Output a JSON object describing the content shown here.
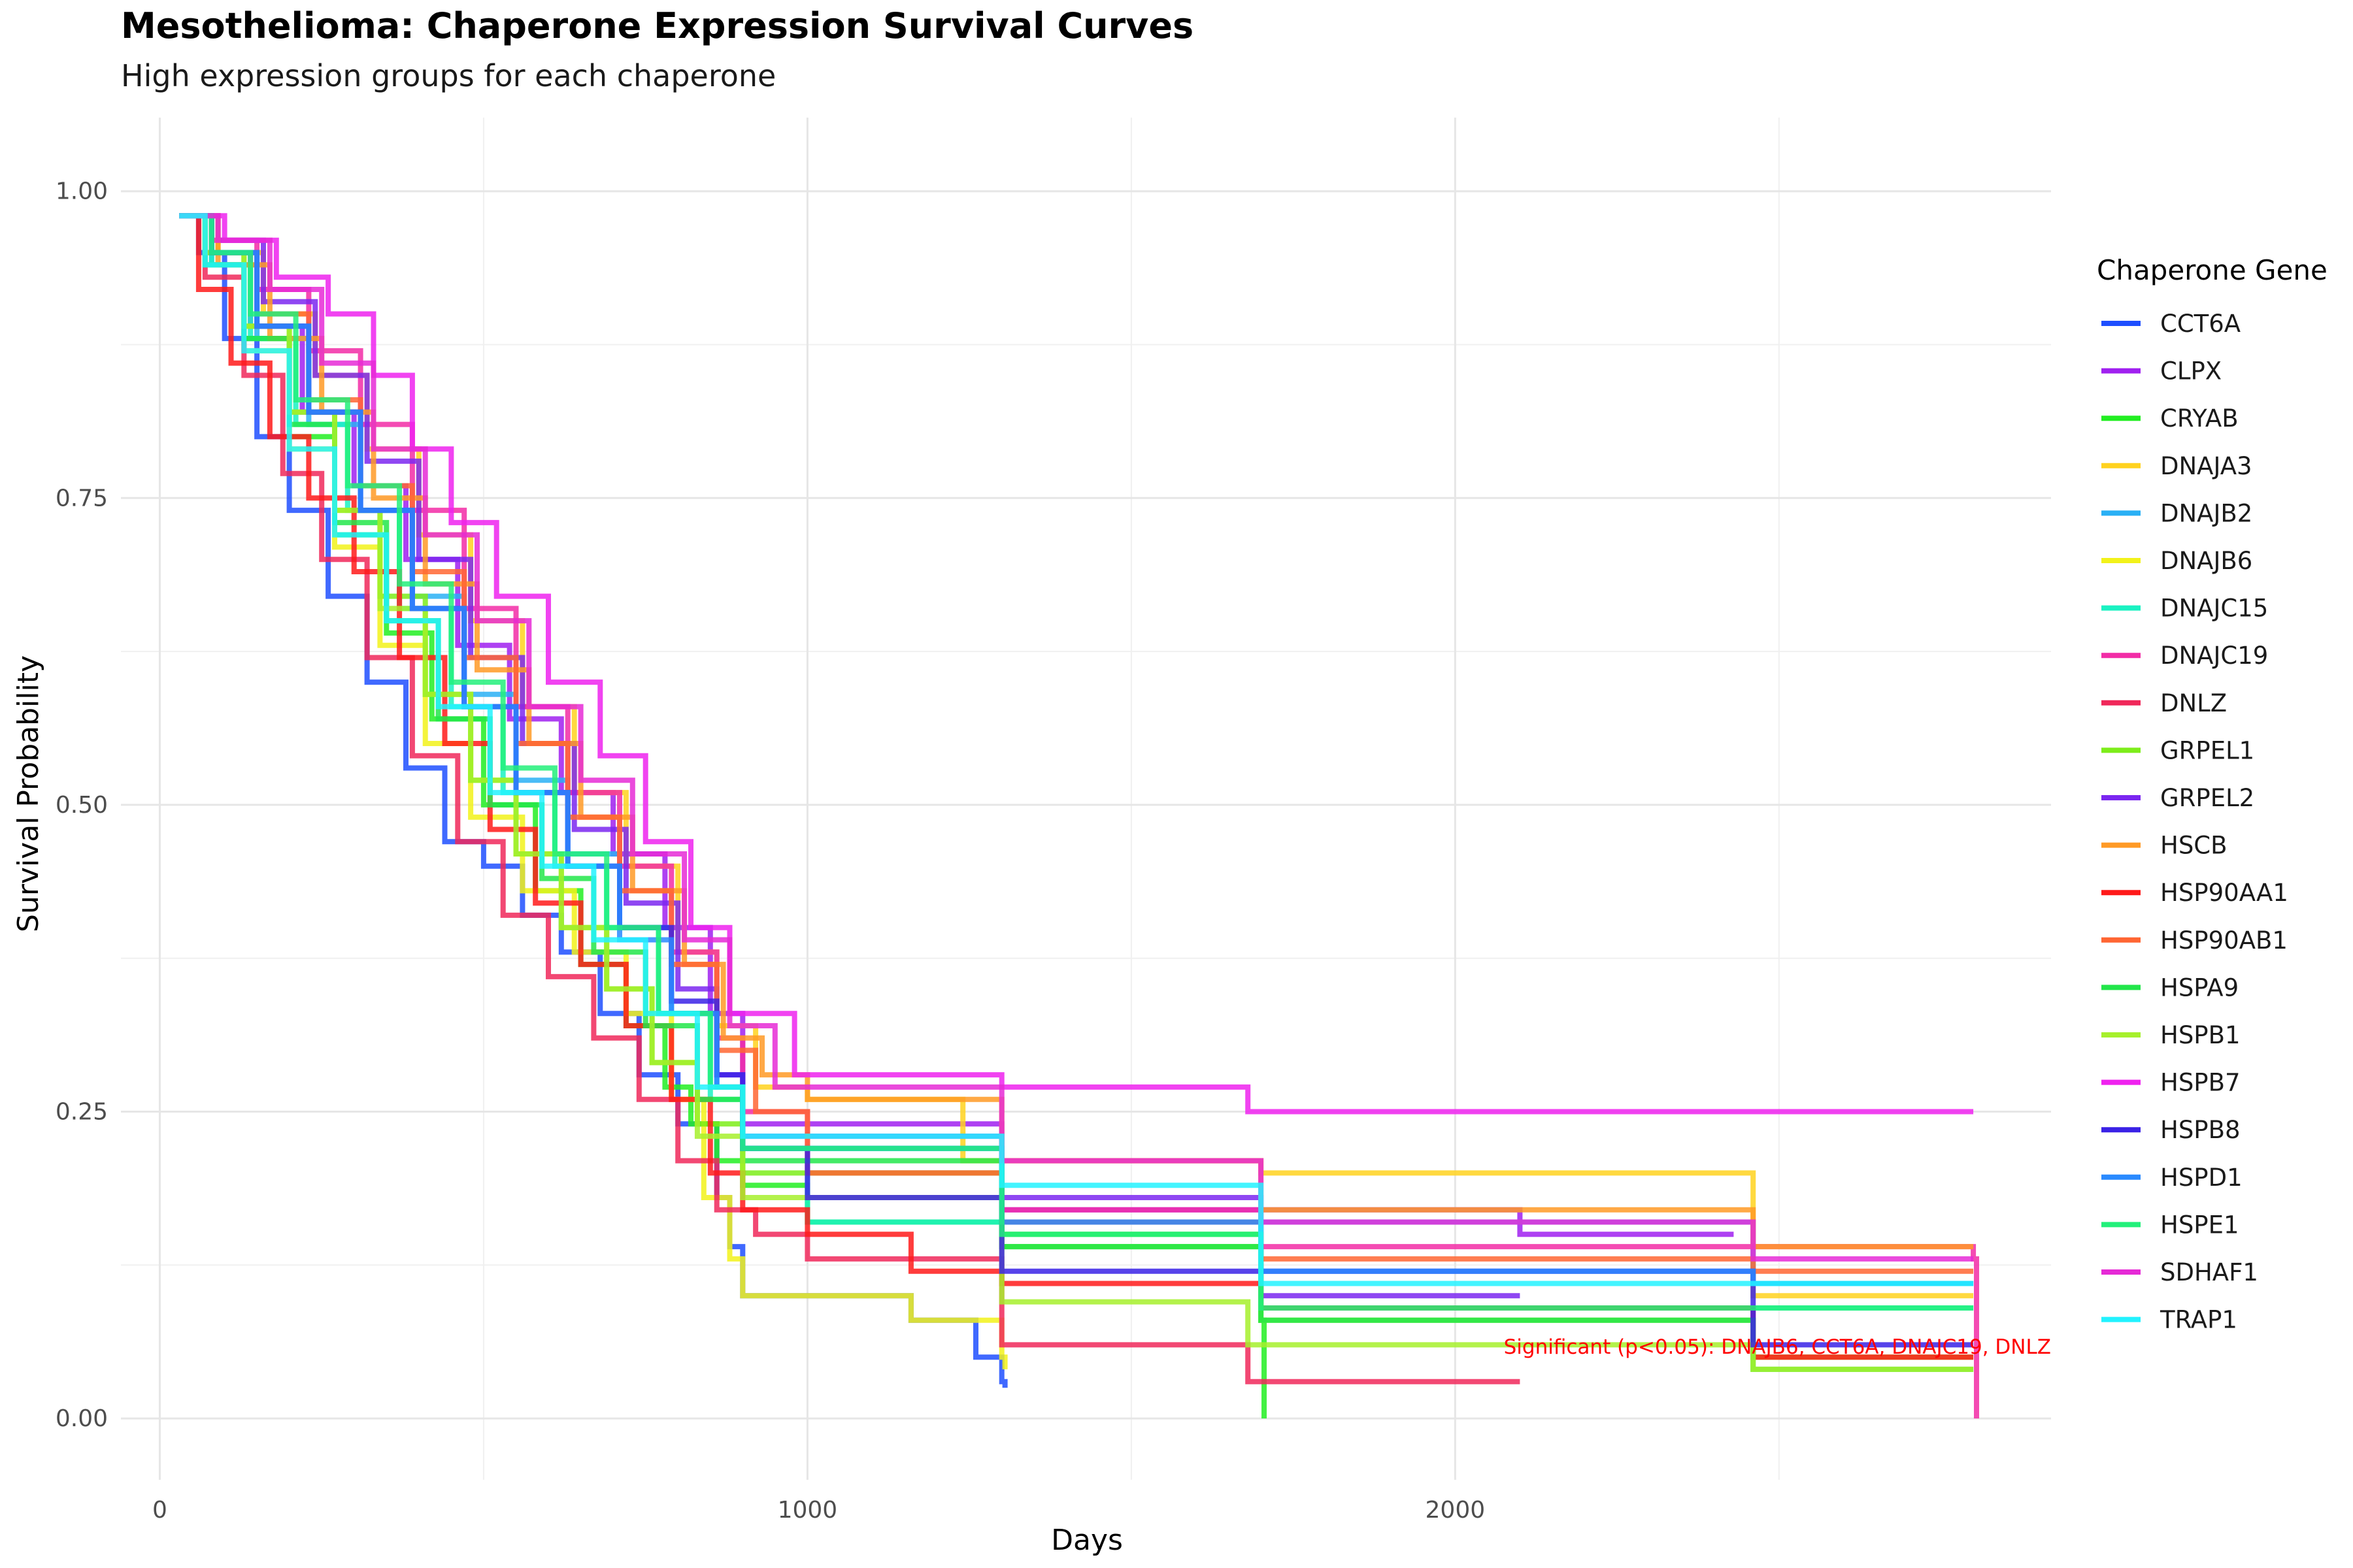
{
  "chart_data": {
    "type": "line",
    "step": true,
    "title": "Mesothelioma: Chaperone Expression Survival Curves",
    "subtitle": "High expression groups for each chaperone",
    "xlabel": "Days",
    "ylabel": "Survival Probability",
    "xlim": [
      -60,
      2920
    ],
    "ylim": [
      -0.05,
      1.06
    ],
    "x_ticks": [
      0,
      1000,
      2000
    ],
    "x_tick_labels": [
      "0",
      "1000",
      "2000"
    ],
    "y_ticks": [
      0,
      0.25,
      0.5,
      0.75,
      1.0
    ],
    "y_tick_labels": [
      "0.00",
      "0.25",
      "0.50",
      "0.75",
      "1.00"
    ],
    "grid": true,
    "legend": {
      "title": "Chaperone Gene",
      "position": "right"
    },
    "annotation": {
      "text": "Significant (p<0.05): DNAJB6, CCT6A, DNAJC19, DNLZ",
      "color": "#ff0000"
    },
    "series": [
      {
        "name": "CCT6A",
        "color": "#1e4fff",
        "x": [
          30,
          60,
          100,
          150,
          200,
          260,
          320,
          380,
          440,
          500,
          560,
          620,
          680,
          740,
          800,
          860,
          880,
          900,
          1160,
          1260,
          1300,
          1305
        ],
        "y": [
          0.98,
          0.95,
          0.88,
          0.8,
          0.74,
          0.67,
          0.6,
          0.53,
          0.47,
          0.45,
          0.41,
          0.38,
          0.33,
          0.28,
          0.24,
          0.18,
          0.14,
          0.1,
          0.08,
          0.05,
          0.03,
          0.025
        ]
      },
      {
        "name": "CLPX",
        "color": "#a020f0",
        "x": [
          30,
          80,
          140,
          220,
          300,
          380,
          460,
          540,
          620,
          700,
          780,
          850,
          900,
          1300,
          2100,
          2300,
          2430
        ],
        "y": [
          0.98,
          0.95,
          0.89,
          0.82,
          0.76,
          0.7,
          0.63,
          0.57,
          0.51,
          0.46,
          0.4,
          0.33,
          0.24,
          0.17,
          0.15,
          0.15,
          0.15
        ]
      },
      {
        "name": "CRYAB",
        "color": "#22ee22",
        "x": [
          30,
          70,
          130,
          200,
          270,
          350,
          420,
          500,
          580,
          650,
          720,
          780,
          820,
          860,
          900,
          1000,
          1300,
          1700,
          1705
        ],
        "y": [
          0.98,
          0.94,
          0.88,
          0.8,
          0.72,
          0.64,
          0.57,
          0.5,
          0.43,
          0.37,
          0.32,
          0.27,
          0.24,
          0.21,
          0.19,
          0.16,
          0.15,
          0.08,
          0.0
        ]
      },
      {
        "name": "DNAJA3",
        "color": "#ffd21f",
        "x": [
          30,
          90,
          160,
          240,
          320,
          400,
          480,
          560,
          640,
          720,
          800,
          860,
          920,
          1000,
          1240,
          1700,
          2460,
          2800
        ],
        "y": [
          0.98,
          0.95,
          0.9,
          0.85,
          0.79,
          0.72,
          0.65,
          0.58,
          0.51,
          0.45,
          0.38,
          0.32,
          0.27,
          0.26,
          0.21,
          0.2,
          0.1,
          0.1
        ]
      },
      {
        "name": "DNAJB2",
        "color": "#2ab0f5",
        "x": [
          30,
          80,
          150,
          230,
          310,
          390,
          470,
          550,
          630,
          710,
          790,
          860,
          900,
          1300,
          2460,
          2800
        ],
        "y": [
          0.98,
          0.94,
          0.88,
          0.81,
          0.74,
          0.67,
          0.59,
          0.52,
          0.46,
          0.4,
          0.33,
          0.27,
          0.22,
          0.16,
          0.11,
          0.11
        ]
      },
      {
        "name": "DNAJB6",
        "color": "#f2f21a",
        "x": [
          30,
          70,
          130,
          200,
          270,
          340,
          410,
          480,
          560,
          640,
          720,
          790,
          840,
          880,
          900,
          1160,
          1300,
          1305
        ],
        "y": [
          0.98,
          0.94,
          0.87,
          0.79,
          0.71,
          0.63,
          0.55,
          0.49,
          0.43,
          0.38,
          0.33,
          0.26,
          0.18,
          0.13,
          0.1,
          0.08,
          0.05,
          0.04
        ]
      },
      {
        "name": "DNAJC15",
        "color": "#1af2c2",
        "x": [
          30,
          80,
          140,
          210,
          290,
          370,
          450,
          530,
          610,
          690,
          770,
          850,
          900,
          1000,
          1300,
          1700,
          2460,
          2800
        ],
        "y": [
          0.98,
          0.94,
          0.88,
          0.81,
          0.74,
          0.66,
          0.58,
          0.51,
          0.45,
          0.4,
          0.33,
          0.26,
          0.22,
          0.16,
          0.14,
          0.09,
          0.09,
          0.09
        ]
      },
      {
        "name": "DNAJC19",
        "color": "#f22ca6",
        "x": [
          30,
          80,
          150,
          230,
          310,
          390,
          470,
          550,
          630,
          710,
          790,
          860,
          900,
          1000,
          1300,
          1700,
          2460,
          2800,
          2805
        ],
        "y": [
          0.98,
          0.96,
          0.92,
          0.87,
          0.81,
          0.74,
          0.66,
          0.58,
          0.51,
          0.45,
          0.38,
          0.31,
          0.25,
          0.2,
          0.17,
          0.14,
          0.14,
          0.13,
          0.0
        ]
      },
      {
        "name": "DNLZ",
        "color": "#f0285a",
        "x": [
          30,
          70,
          130,
          190,
          250,
          320,
          390,
          460,
          530,
          600,
          670,
          740,
          800,
          860,
          920,
          1000,
          1300,
          1680,
          2100
        ],
        "y": [
          0.98,
          0.93,
          0.85,
          0.77,
          0.7,
          0.62,
          0.54,
          0.47,
          0.41,
          0.36,
          0.31,
          0.26,
          0.21,
          0.17,
          0.15,
          0.13,
          0.06,
          0.03,
          0.03
        ]
      },
      {
        "name": "GRPEL1",
        "color": "#7ded1a",
        "x": [
          30,
          70,
          130,
          200,
          270,
          340,
          410,
          480,
          550,
          620,
          690,
          760,
          830,
          900,
          1300,
          1700,
          2460,
          2800
        ],
        "y": [
          0.98,
          0.95,
          0.89,
          0.82,
          0.74,
          0.67,
          0.59,
          0.52,
          0.46,
          0.4,
          0.35,
          0.29,
          0.24,
          0.2,
          0.14,
          0.08,
          0.05,
          0.05
        ]
      },
      {
        "name": "GRPEL2",
        "color": "#7b27f0",
        "x": [
          30,
          90,
          160,
          240,
          320,
          400,
          480,
          560,
          640,
          720,
          800,
          860,
          900,
          1300,
          1700,
          2100
        ],
        "y": [
          0.98,
          0.96,
          0.91,
          0.85,
          0.78,
          0.7,
          0.62,
          0.55,
          0.48,
          0.42,
          0.35,
          0.28,
          0.23,
          0.18,
          0.1,
          0.1
        ]
      },
      {
        "name": "HSCB",
        "color": "#ff9a26",
        "x": [
          30,
          90,
          170,
          250,
          330,
          410,
          490,
          570,
          650,
          730,
          810,
          870,
          930,
          1000,
          1300,
          1700,
          2460,
          2800
        ],
        "y": [
          0.98,
          0.94,
          0.88,
          0.82,
          0.75,
          0.68,
          0.61,
          0.55,
          0.49,
          0.43,
          0.37,
          0.31,
          0.28,
          0.26,
          0.21,
          0.17,
          0.14,
          0.14
        ]
      },
      {
        "name": "HSP90AA1",
        "color": "#ff1a1a",
        "x": [
          30,
          60,
          110,
          170,
          230,
          300,
          370,
          440,
          510,
          580,
          650,
          720,
          790,
          850,
          900,
          1000,
          1160,
          1300,
          1700,
          2460,
          2800
        ],
        "y": [
          0.98,
          0.92,
          0.86,
          0.8,
          0.75,
          0.69,
          0.62,
          0.55,
          0.48,
          0.42,
          0.37,
          0.32,
          0.26,
          0.2,
          0.17,
          0.15,
          0.12,
          0.11,
          0.09,
          0.05,
          0.05
        ]
      },
      {
        "name": "HSP90AB1",
        "color": "#ff6633",
        "x": [
          30,
          80,
          150,
          230,
          310,
          390,
          470,
          550,
          630,
          710,
          790,
          860,
          920,
          1000,
          1300,
          1700,
          2460,
          2800
        ],
        "y": [
          0.98,
          0.95,
          0.9,
          0.83,
          0.76,
          0.69,
          0.62,
          0.55,
          0.49,
          0.43,
          0.37,
          0.3,
          0.25,
          0.2,
          0.16,
          0.13,
          0.12,
          0.12
        ]
      },
      {
        "name": "HSPA9",
        "color": "#22e64a",
        "x": [
          30,
          70,
          130,
          200,
          270,
          350,
          430,
          510,
          590,
          670,
          750,
          830,
          900,
          1300,
          1700,
          2460,
          2800
        ],
        "y": [
          0.98,
          0.94,
          0.88,
          0.81,
          0.73,
          0.65,
          0.57,
          0.5,
          0.44,
          0.38,
          0.32,
          0.26,
          0.21,
          0.14,
          0.08,
          0.04,
          0.04
        ]
      },
      {
        "name": "HSPB1",
        "color": "#a6f02c",
        "x": [
          30,
          70,
          130,
          200,
          270,
          340,
          410,
          480,
          550,
          620,
          690,
          760,
          830,
          900,
          1300,
          1680,
          2460,
          2800
        ],
        "y": [
          0.98,
          0.95,
          0.89,
          0.82,
          0.74,
          0.66,
          0.59,
          0.52,
          0.46,
          0.4,
          0.35,
          0.29,
          0.23,
          0.18,
          0.095,
          0.06,
          0.04,
          0.04
        ]
      },
      {
        "name": "HSPB7",
        "color": "#ef22ef",
        "x": [
          30,
          100,
          180,
          260,
          330,
          390,
          450,
          520,
          600,
          680,
          750,
          820,
          880,
          980,
          1300,
          1680,
          2460,
          2800
        ],
        "y": [
          0.98,
          0.96,
          0.93,
          0.9,
          0.85,
          0.79,
          0.73,
          0.67,
          0.6,
          0.54,
          0.47,
          0.4,
          0.33,
          0.28,
          0.27,
          0.25,
          0.25,
          0.25
        ]
      },
      {
        "name": "HSPB8",
        "color": "#3a22e6",
        "x": [
          30,
          80,
          150,
          230,
          310,
          390,
          470,
          550,
          630,
          710,
          790,
          860,
          900,
          1000,
          1300,
          2460,
          2800
        ],
        "y": [
          0.98,
          0.95,
          0.89,
          0.82,
          0.74,
          0.66,
          0.58,
          0.51,
          0.45,
          0.4,
          0.34,
          0.28,
          0.22,
          0.18,
          0.12,
          0.06,
          0.06
        ]
      },
      {
        "name": "HSPD1",
        "color": "#2a8aff",
        "x": [
          30,
          80,
          150,
          230,
          310,
          390,
          470,
          550,
          630,
          710,
          790,
          860,
          900,
          1300,
          1700,
          2460,
          2800
        ],
        "y": [
          0.98,
          0.95,
          0.89,
          0.82,
          0.74,
          0.66,
          0.58,
          0.51,
          0.45,
          0.39,
          0.33,
          0.27,
          0.22,
          0.16,
          0.12,
          0.11,
          0.11
        ]
      },
      {
        "name": "HSPE1",
        "color": "#22f07a",
        "x": [
          30,
          80,
          140,
          210,
          290,
          370,
          450,
          530,
          610,
          690,
          770,
          850,
          900,
          1300,
          1700,
          2460,
          2800
        ],
        "y": [
          0.98,
          0.95,
          0.9,
          0.83,
          0.76,
          0.68,
          0.6,
          0.53,
          0.46,
          0.4,
          0.33,
          0.27,
          0.22,
          0.15,
          0.09,
          0.09,
          0.09
        ]
      },
      {
        "name": "SDHAF1",
        "color": "#e62ad6",
        "x": [
          30,
          90,
          170,
          250,
          330,
          410,
          490,
          570,
          650,
          730,
          810,
          880,
          950,
          1300,
          1700,
          2460,
          2800
        ],
        "y": [
          0.98,
          0.96,
          0.92,
          0.86,
          0.79,
          0.72,
          0.65,
          0.58,
          0.52,
          0.46,
          0.39,
          0.32,
          0.27,
          0.21,
          0.16,
          0.13,
          0.13
        ]
      },
      {
        "name": "TRAP1",
        "color": "#22f2ff",
        "x": [
          30,
          70,
          130,
          200,
          270,
          350,
          430,
          510,
          590,
          670,
          750,
          830,
          900,
          1300,
          1700,
          2460,
          2800
        ],
        "y": [
          0.98,
          0.94,
          0.87,
          0.79,
          0.72,
          0.65,
          0.58,
          0.51,
          0.45,
          0.39,
          0.33,
          0.27,
          0.23,
          0.19,
          0.11,
          0.11,
          0.11
        ]
      }
    ]
  }
}
